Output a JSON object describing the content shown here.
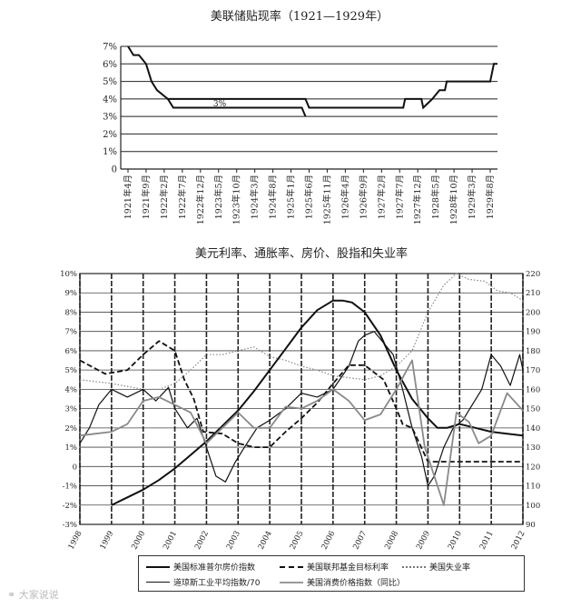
{
  "chart_data": [
    {
      "type": "line",
      "title": "美联储贴现率（1921—1929年）",
      "xlabel": "",
      "ylabel": "",
      "ylim": [
        0,
        7
      ],
      "y_ticks": [
        "0",
        "1%",
        "2%",
        "3%",
        "4%",
        "5%",
        "6%",
        "7%"
      ],
      "x_ticks": [
        "1921年4月",
        "1921年9月",
        "1922年2月",
        "1922年7月",
        "1922年12月",
        "1923年5月",
        "1923年10月",
        "1924年3月",
        "1924年8月",
        "1925年1月",
        "1925年6月",
        "1925年11月",
        "1926年4月",
        "1926年9月",
        "1927年2月",
        "1927年7月",
        "1927年12月",
        "1928年5月",
        "1928年10月",
        "1929年3月",
        "1929年8月"
      ],
      "grid": true,
      "annotation": "3%",
      "series": [
        {
          "x": [
            0,
            0.3,
            0.6,
            1.0,
            1.3,
            1.6,
            2.2,
            9.8,
            10.0,
            15.2,
            15.3,
            16.2,
            16.3,
            16.8,
            17.2,
            17.5,
            17.6,
            20.0,
            20.2,
            20.4
          ],
          "y": [
            7,
            6.5,
            6.5,
            6.0,
            5.0,
            4.5,
            4.0,
            4.0,
            3.5,
            3.5,
            4.0,
            4.0,
            3.5,
            4.0,
            4.5,
            4.5,
            5.0,
            5.0,
            6.0,
            6.0
          ]
        },
        {
          "x": [
            2.2,
            2.5,
            9.6,
            9.8
          ],
          "y": [
            4.0,
            3.5,
            3.5,
            3.0
          ]
        }
      ]
    },
    {
      "type": "line",
      "title": "美元利率、通胀率、房价、股指和失业率",
      "xlabel": "",
      "ylabel": "",
      "ylim": [
        -3,
        10
      ],
      "y2lim": [
        90,
        220
      ],
      "y_ticks": [
        "10%",
        "9%",
        "8%",
        "7%",
        "6%",
        "5%",
        "4%",
        "3%",
        "2%",
        "1%",
        "0",
        "-1%",
        "-2%",
        "-3%"
      ],
      "y2_ticks": [
        "220",
        "210",
        "200",
        "190",
        "180",
        "170",
        "160",
        "150",
        "140",
        "130",
        "120",
        "110",
        "100",
        "90"
      ],
      "x_ticks": [
        "1998",
        "1999",
        "2000",
        "2001",
        "2002",
        "2003",
        "2004",
        "2005",
        "2006",
        "2007",
        "2008",
        "2009",
        "2010",
        "2011",
        "2012"
      ],
      "xlim": [
        1998,
        2012
      ],
      "grid": true,
      "legend_position": "bottom",
      "series": [
        {
          "name": "美国标准普尔房价指数",
          "axis": "right",
          "style": "solid-thick",
          "x": [
            1999.0,
            1999.5,
            2000.0,
            2000.5,
            2001.0,
            2001.5,
            2002.0,
            2002.5,
            2003.0,
            2003.5,
            2004.0,
            2004.5,
            2005.0,
            2005.5,
            2006.0,
            2006.3,
            2006.6,
            2007.0,
            2007.5,
            2008.0,
            2008.5,
            2009.0,
            2009.3,
            2009.6,
            2010.0,
            2010.5,
            2011.0,
            2011.5,
            2012.0
          ],
          "y": [
            100,
            104,
            108,
            113,
            119,
            126,
            133,
            141,
            149,
            159,
            170,
            181,
            192,
            201,
            206,
            206,
            205,
            200,
            188,
            170,
            155,
            145,
            140,
            140,
            142,
            140,
            138,
            137,
            136
          ]
        },
        {
          "name": "美国联邦基金目标利率",
          "axis": "left",
          "style": "dashed",
          "x": [
            1998.0,
            1998.8,
            1999.5,
            2000.0,
            2000.5,
            2001.0,
            2001.3,
            2001.6,
            2001.9,
            2002.5,
            2003.0,
            2003.5,
            2004.0,
            2004.5,
            2005.0,
            2005.5,
            2006.0,
            2006.5,
            2007.0,
            2007.6,
            2008.0,
            2008.2,
            2008.5,
            2009.0,
            2012.0
          ],
          "y": [
            5.5,
            4.8,
            5.0,
            5.8,
            6.5,
            6.0,
            4.5,
            3.5,
            1.8,
            1.7,
            1.2,
            1.0,
            1.0,
            1.8,
            2.5,
            3.3,
            4.3,
            5.25,
            5.25,
            4.5,
            3.0,
            2.2,
            2.0,
            0.25,
            0.25
          ]
        },
        {
          "name": "美国失业率",
          "axis": "left",
          "style": "dotted",
          "x": [
            1998.0,
            1999.0,
            2000.0,
            2000.5,
            2001.0,
            2001.5,
            2002.0,
            2002.5,
            2003.0,
            2003.5,
            2004.0,
            2004.5,
            2005.0,
            2005.5,
            2006.0,
            2006.5,
            2007.0,
            2007.5,
            2008.0,
            2008.5,
            2009.0,
            2009.5,
            2009.9,
            2010.3,
            2010.8,
            2011.2,
            2011.6,
            2012.0
          ],
          "y": [
            4.5,
            4.3,
            4.0,
            4.0,
            4.3,
            5.0,
            5.8,
            5.8,
            6.0,
            6.2,
            5.7,
            5.5,
            5.2,
            5.0,
            4.7,
            4.6,
            4.5,
            4.7,
            5.2,
            6.0,
            8.0,
            9.4,
            10.0,
            9.7,
            9.6,
            9.1,
            9.0,
            8.6
          ]
        },
        {
          "name": "道琼斯工业平均指数/70",
          "axis": "left",
          "style": "solid-jagged",
          "x": [
            1998.0,
            1998.3,
            1998.6,
            1999.0,
            1999.5,
            2000.0,
            2000.4,
            2000.8,
            2001.0,
            2001.4,
            2001.7,
            2002.0,
            2002.3,
            2002.6,
            2002.9,
            2003.2,
            2003.6,
            2004.0,
            2004.5,
            2005.0,
            2005.5,
            2006.0,
            2006.5,
            2006.8,
            2007.0,
            2007.3,
            2007.6,
            2007.9,
            2008.2,
            2008.5,
            2008.8,
            2009.0,
            2009.2,
            2009.5,
            2009.8,
            2010.1,
            2010.4,
            2010.7,
            2011.0,
            2011.3,
            2011.6,
            2011.9,
            2012.0
          ],
          "y": [
            1.2,
            2.0,
            3.2,
            4.0,
            3.6,
            4.0,
            3.4,
            4.1,
            3.0,
            2.0,
            2.5,
            1.0,
            -0.5,
            -0.8,
            0.2,
            1.0,
            2.0,
            2.4,
            3.0,
            3.8,
            3.6,
            4.0,
            5.2,
            6.5,
            6.8,
            7.0,
            6.4,
            5.8,
            4.0,
            2.0,
            0.5,
            -1.0,
            -0.5,
            1.0,
            2.0,
            2.4,
            3.2,
            4.0,
            5.8,
            5.2,
            4.2,
            5.8,
            5.0
          ]
        },
        {
          "name": "美国消费价格指数（同比）",
          "axis": "left",
          "style": "solid-grey",
          "x": [
            1998.0,
            1998.5,
            1999.0,
            1999.5,
            2000.0,
            2000.5,
            2001.0,
            2001.5,
            2002.0,
            2002.5,
            2003.0,
            2003.5,
            2004.0,
            2004.5,
            2005.0,
            2005.5,
            2006.0,
            2006.5,
            2007.0,
            2007.5,
            2008.0,
            2008.5,
            2008.9,
            2009.2,
            2009.5,
            2009.9,
            2010.3,
            2010.6,
            2011.0,
            2011.5,
            2012.0
          ],
          "y": [
            1.6,
            1.7,
            1.8,
            2.2,
            3.4,
            3.6,
            3.2,
            2.8,
            1.2,
            2.0,
            2.8,
            2.0,
            2.0,
            3.1,
            3.0,
            3.4,
            4.0,
            3.4,
            2.4,
            2.7,
            4.0,
            5.5,
            1.0,
            -0.5,
            -2.0,
            2.8,
            2.3,
            1.2,
            1.6,
            3.8,
            2.9
          ]
        }
      ]
    }
  ],
  "watermark": "大家说说",
  "watermark_icon": "share-icon"
}
